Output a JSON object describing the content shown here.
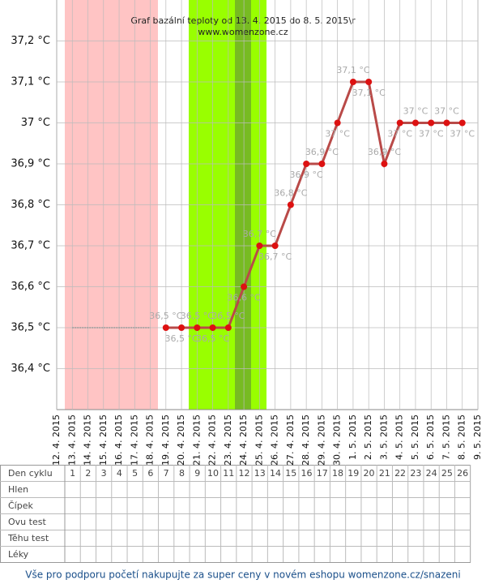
{
  "chart_data": {
    "type": "line",
    "title": "Graf bazální teploty od 13. 4. 2015 do 8. 5. 2015\\r",
    "subtitle": "www.womenzone.cz",
    "categories": [
      "12. 4. 2015",
      "13. 4. 2015",
      "14. 4. 2015",
      "15. 4. 2015",
      "16. 4. 2015",
      "17. 4. 2015",
      "18. 4. 2015",
      "19. 4. 2015",
      "20. 4. 2015",
      "21. 4. 2015",
      "22. 4. 2015",
      "23. 4. 2015",
      "24. 4. 2015",
      "25. 4. 2015",
      "26. 4. 2015",
      "27. 4. 2015",
      "28. 4. 2015",
      "29. 4. 2015",
      "30. 4. 2015",
      "1. 5. 2015",
      "2. 5. 2015",
      "3. 5. 2015",
      "4. 5. 2015",
      "5. 5. 2015",
      "6. 5. 2015",
      "7. 5. 2015",
      "8. 5. 2015",
      "9. 5. 2015"
    ],
    "series": [
      {
        "color": "#b94a48",
        "marker_color": "#dd1111",
        "values": [
          null,
          null,
          null,
          null,
          null,
          null,
          null,
          36.5,
          36.5,
          36.5,
          36.5,
          36.5,
          36.6,
          36.7,
          36.7,
          36.8,
          36.9,
          36.9,
          37,
          37.1,
          37.1,
          36.9,
          37,
          37,
          37,
          37,
          37,
          null
        ],
        "value_labels": [
          null,
          null,
          null,
          null,
          null,
          null,
          null,
          "36,5 °C",
          "36,5 °C",
          "36,5 °C",
          "36,5 °C",
          "36,5 °C",
          "36,6 °C",
          "36,7 °C",
          "36,7 °C",
          "36,8 °C",
          "36,9 °C",
          "36,9 °C",
          "37 °C",
          "37,1 °C",
          "37,1 °C",
          "36,9 °C",
          "37 °C",
          "37 °C",
          "37 °C",
          "37 °C",
          "37 °C",
          null
        ]
      },
      {
        "color": "#999999",
        "dashed": true,
        "values": [
          null,
          36.5,
          36.5,
          36.5,
          36.5,
          36.5,
          36.5,
          null,
          null,
          null,
          null,
          null,
          null,
          null,
          null,
          null,
          null,
          null,
          null,
          null,
          null,
          null,
          null,
          null,
          null,
          null,
          null,
          null
        ]
      }
    ],
    "ylim": [
      36.3,
      37.3
    ],
    "yticks": [
      {
        "value": 36.4,
        "label": "36,4 °C"
      },
      {
        "value": 36.5,
        "label": "36,5 °C"
      },
      {
        "value": 36.6,
        "label": "36,6 °C"
      },
      {
        "value": 36.7,
        "label": "36,7 °C"
      },
      {
        "value": 36.8,
        "label": "36,8 °C"
      },
      {
        "value": 36.9,
        "label": "36,9 °C"
      },
      {
        "value": 37,
        "label": "37 °C"
      },
      {
        "value": 37.1,
        "label": "37,1 °C"
      },
      {
        "value": 37.2,
        "label": "37,2 °C"
      }
    ],
    "grid": true
  },
  "table": {
    "header": "Den cyklu",
    "days": [
      "1",
      "2",
      "3",
      "4",
      "5",
      "6",
      "7",
      "8",
      "9",
      "10",
      "11",
      "12",
      "13",
      "14",
      "15",
      "16",
      "17",
      "18",
      "19",
      "20",
      "21",
      "22",
      "23",
      "24",
      "25",
      "26"
    ],
    "rows": [
      "Hlen",
      "Čípek",
      "Ovu test",
      "Těhu test",
      "Léky"
    ]
  },
  "footer": "Vše pro podporu početí nakupujte za super ceny v novém eshopu womenzone.cz/snazeni"
}
